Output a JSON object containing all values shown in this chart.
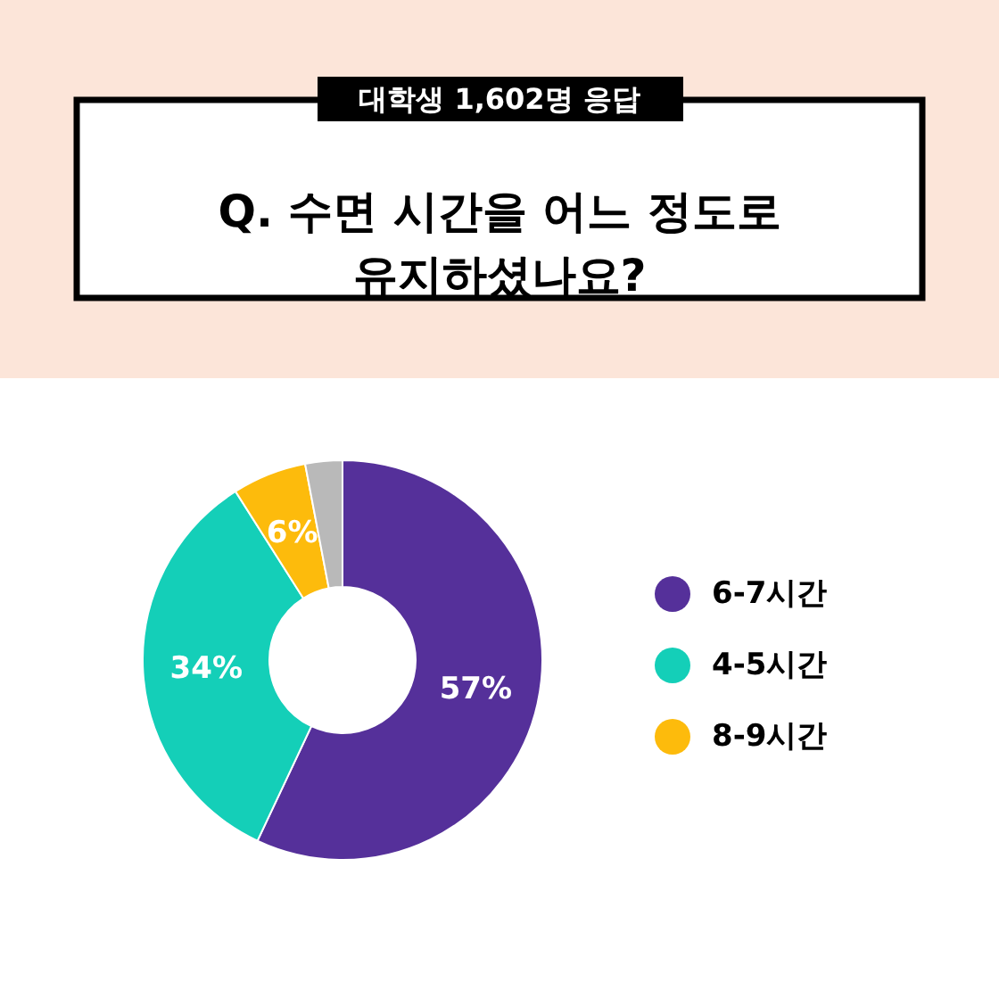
{
  "chart_data": {
    "type": "donut",
    "title": "Q. 수면 시간을 어느 정도로 유지하셨나요?",
    "subtitle": "대학생 1,602명 응답",
    "categories": [
      "6-7시간",
      "4-5시간",
      "8-9시간",
      null
    ],
    "values": [
      57,
      34,
      6,
      3
    ],
    "colors": [
      "#55309a",
      "#14cfb8",
      "#fdbb0c",
      "#b9b9b9"
    ],
    "value_labels": [
      "57%",
      "34%",
      "6%",
      null
    ],
    "legend": "right"
  }
}
